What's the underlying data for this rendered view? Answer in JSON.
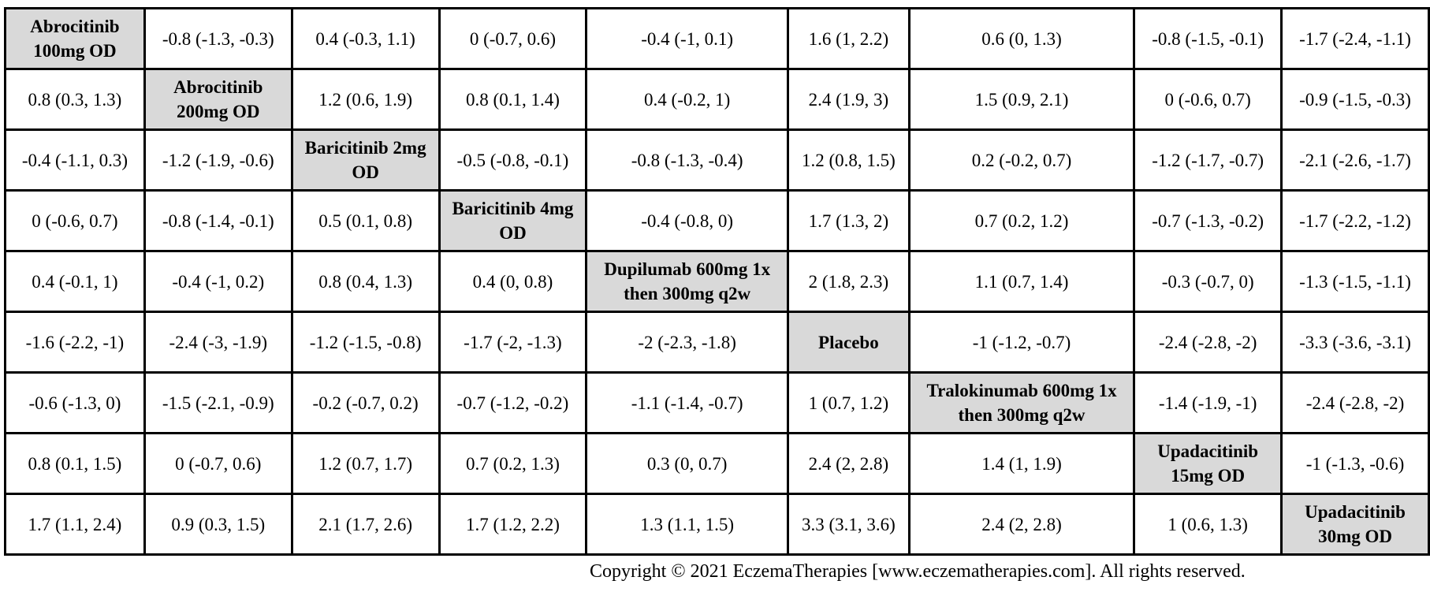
{
  "chart_data": {
    "type": "table",
    "title": "",
    "row_labels": [
      "Abrocitinib 100mg OD",
      "Abrocitinib 200mg OD",
      "Baricitinib 2mg OD",
      "Baricitinib 4mg OD",
      "Dupilumab 600mg 1x then 300mg q2w",
      "Placebo",
      "Tralokinumab 600mg 1x then 300mg q2w",
      "Upadacitinib 15mg OD",
      "Upadacitinib 30mg OD"
    ],
    "rows": [
      [
        "Abrocitinib 100mg OD",
        "-0.8 (-1.3, -0.3)",
        "0.4 (-0.3, 1.1)",
        "0 (-0.7, 0.6)",
        "-0.4 (-1, 0.1)",
        "1.6 (1, 2.2)",
        "0.6 (0, 1.3)",
        "-0.8 (-1.5, -0.1)",
        "-1.7 (-2.4, -1.1)"
      ],
      [
        "0.8 (0.3, 1.3)",
        "Abrocitinib 200mg OD",
        "1.2 (0.6, 1.9)",
        "0.8 (0.1, 1.4)",
        "0.4 (-0.2, 1)",
        "2.4 (1.9, 3)",
        "1.5 (0.9, 2.1)",
        "0 (-0.6, 0.7)",
        "-0.9 (-1.5, -0.3)"
      ],
      [
        "-0.4 (-1.1, 0.3)",
        "-1.2 (-1.9, -0.6)",
        "Baricitinib 2mg OD",
        "-0.5 (-0.8, -0.1)",
        "-0.8 (-1.3, -0.4)",
        "1.2 (0.8, 1.5)",
        "0.2 (-0.2, 0.7)",
        "-1.2 (-1.7, -0.7)",
        "-2.1 (-2.6, -1.7)"
      ],
      [
        "0 (-0.6, 0.7)",
        "-0.8 (-1.4, -0.1)",
        "0.5 (0.1, 0.8)",
        "Baricitinib 4mg OD",
        "-0.4 (-0.8, 0)",
        "1.7 (1.3, 2)",
        "0.7 (0.2, 1.2)",
        "-0.7 (-1.3, -0.2)",
        "-1.7 (-2.2, -1.2)"
      ],
      [
        "0.4 (-0.1, 1)",
        "-0.4 (-1, 0.2)",
        "0.8 (0.4, 1.3)",
        "0.4 (0, 0.8)",
        "Dupilumab 600mg 1x then 300mg q2w",
        "2 (1.8, 2.3)",
        "1.1 (0.7, 1.4)",
        "-0.3 (-0.7, 0)",
        "-1.3 (-1.5, -1.1)"
      ],
      [
        "-1.6 (-2.2, -1)",
        "-2.4 (-3, -1.9)",
        "-1.2 (-1.5, -0.8)",
        "-1.7 (-2, -1.3)",
        "-2 (-2.3, -1.8)",
        "Placebo",
        "-1 (-1.2, -0.7)",
        "-2.4 (-2.8, -2)",
        "-3.3 (-3.6, -3.1)"
      ],
      [
        "-0.6 (-1.3, 0)",
        "-1.5 (-2.1, -0.9)",
        "-0.2 (-0.7, 0.2)",
        "-0.7 (-1.2, -0.2)",
        "-1.1 (-1.4, -0.7)",
        "1 (0.7, 1.2)",
        "Tralokinumab 600mg 1x then 300mg q2w",
        "-1.4 (-1.9, -1)",
        "-2.4 (-2.8, -2)"
      ],
      [
        "0.8 (0.1, 1.5)",
        "0 (-0.7, 0.6)",
        "1.2 (0.7, 1.7)",
        "0.7 (0.2, 1.3)",
        "0.3 (0, 0.7)",
        "2.4 (2, 2.8)",
        "1.4 (1, 1.9)",
        "Upadacitinib 15mg OD",
        "-1 (-1.3, -0.6)"
      ],
      [
        "1.7 (1.1, 2.4)",
        "0.9 (0.3, 1.5)",
        "2.1 (1.7, 2.6)",
        "1.7 (1.2, 2.2)",
        "1.3 (1.1, 1.5)",
        "3.3 (3.1, 3.6)",
        "2.4 (2, 2.8)",
        "1 (0.6, 1.3)",
        "Upadacitinib 30mg OD"
      ]
    ],
    "colors": {
      "diagonal_fill": "#d9d9d9",
      "cell_fill": "#ffffff",
      "border": "#000000"
    }
  },
  "footer": {
    "copyright": "Copyright © 2021 EczemaTherapies [www.eczematherapies.com]. All rights reserved."
  }
}
